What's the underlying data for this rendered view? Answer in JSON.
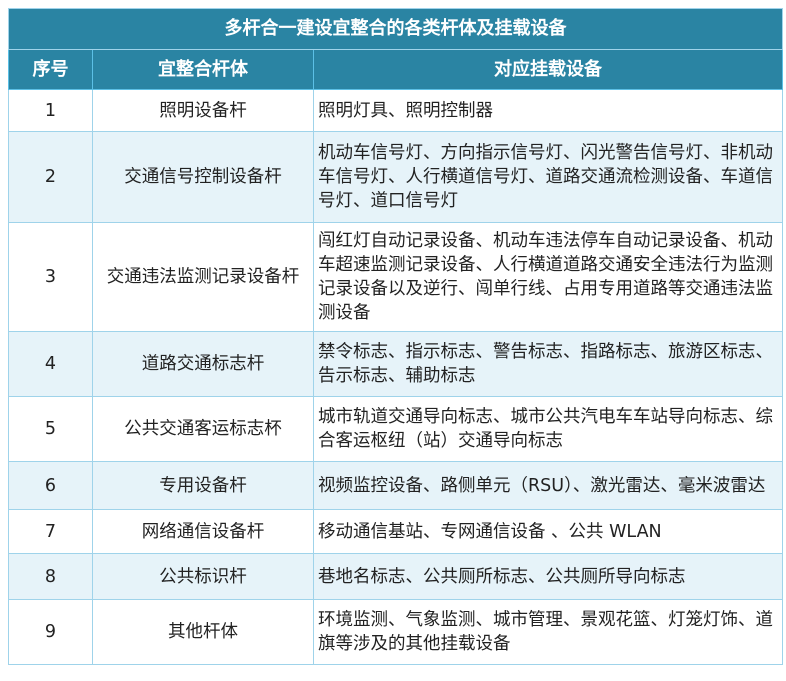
{
  "title": "多杆合一建设宜整合的各类杆体及挂载设备",
  "columns": [
    "序号",
    "宜整合杆体",
    "对应挂载设备"
  ],
  "rows": [
    {
      "no": "1",
      "pole": "照明设备杆",
      "devices": "照明灯具、照明控制器"
    },
    {
      "no": "2",
      "pole": "交通信号控制设备杆",
      "devices": "机动车信号灯、方向指示信号灯、闪光警告信号灯、非机动车信号灯、人行横道信号灯、道路交通流检测设备、车道信号灯、道口信号灯"
    },
    {
      "no": "3",
      "pole": "交通违法监测记录设备杆",
      "devices": "闯红灯自动记录设备、机动车违法停车自动记录设备、机动车超速监测记录设备、人行横道道路交通安全违法行为监测记录设备以及逆行、闯单行线、占用专用道路等交通违法监测设备"
    },
    {
      "no": "4",
      "pole": "道路交通标志杆",
      "devices": "禁令标志、指示标志、警告标志、指路标志、旅游区标志、告示标志、辅助标志"
    },
    {
      "no": "5",
      "pole": "公共交通客运标志杯",
      "devices": "城市轨道交通导向标志、城市公共汽电车车站导向标志、综合客运枢纽（站）交通导向标志"
    },
    {
      "no": "6",
      "pole": "专用设备杆",
      "devices": "视频监控设备、路侧单元（RSU）、激光雷达、毫米波雷达"
    },
    {
      "no": "7",
      "pole": "网络通信设备杆",
      "devices": "移动通信基站、专网通信设备 、公共 WLAN"
    },
    {
      "no": "8",
      "pole": "公共标识杆",
      "devices": "巷地名标志、公共厕所标志、公共厕所导向标志"
    },
    {
      "no": "9",
      "pole": "其他杆体",
      "devices": "环境监测、气象监测、城市管理、景观花篮、灯笼灯饰、道旗等涉及的其他挂载设备"
    }
  ],
  "colors": {
    "header": "#2a84a3",
    "border": "#9fd3ea",
    "alt_row": "#e6f3f9"
  }
}
